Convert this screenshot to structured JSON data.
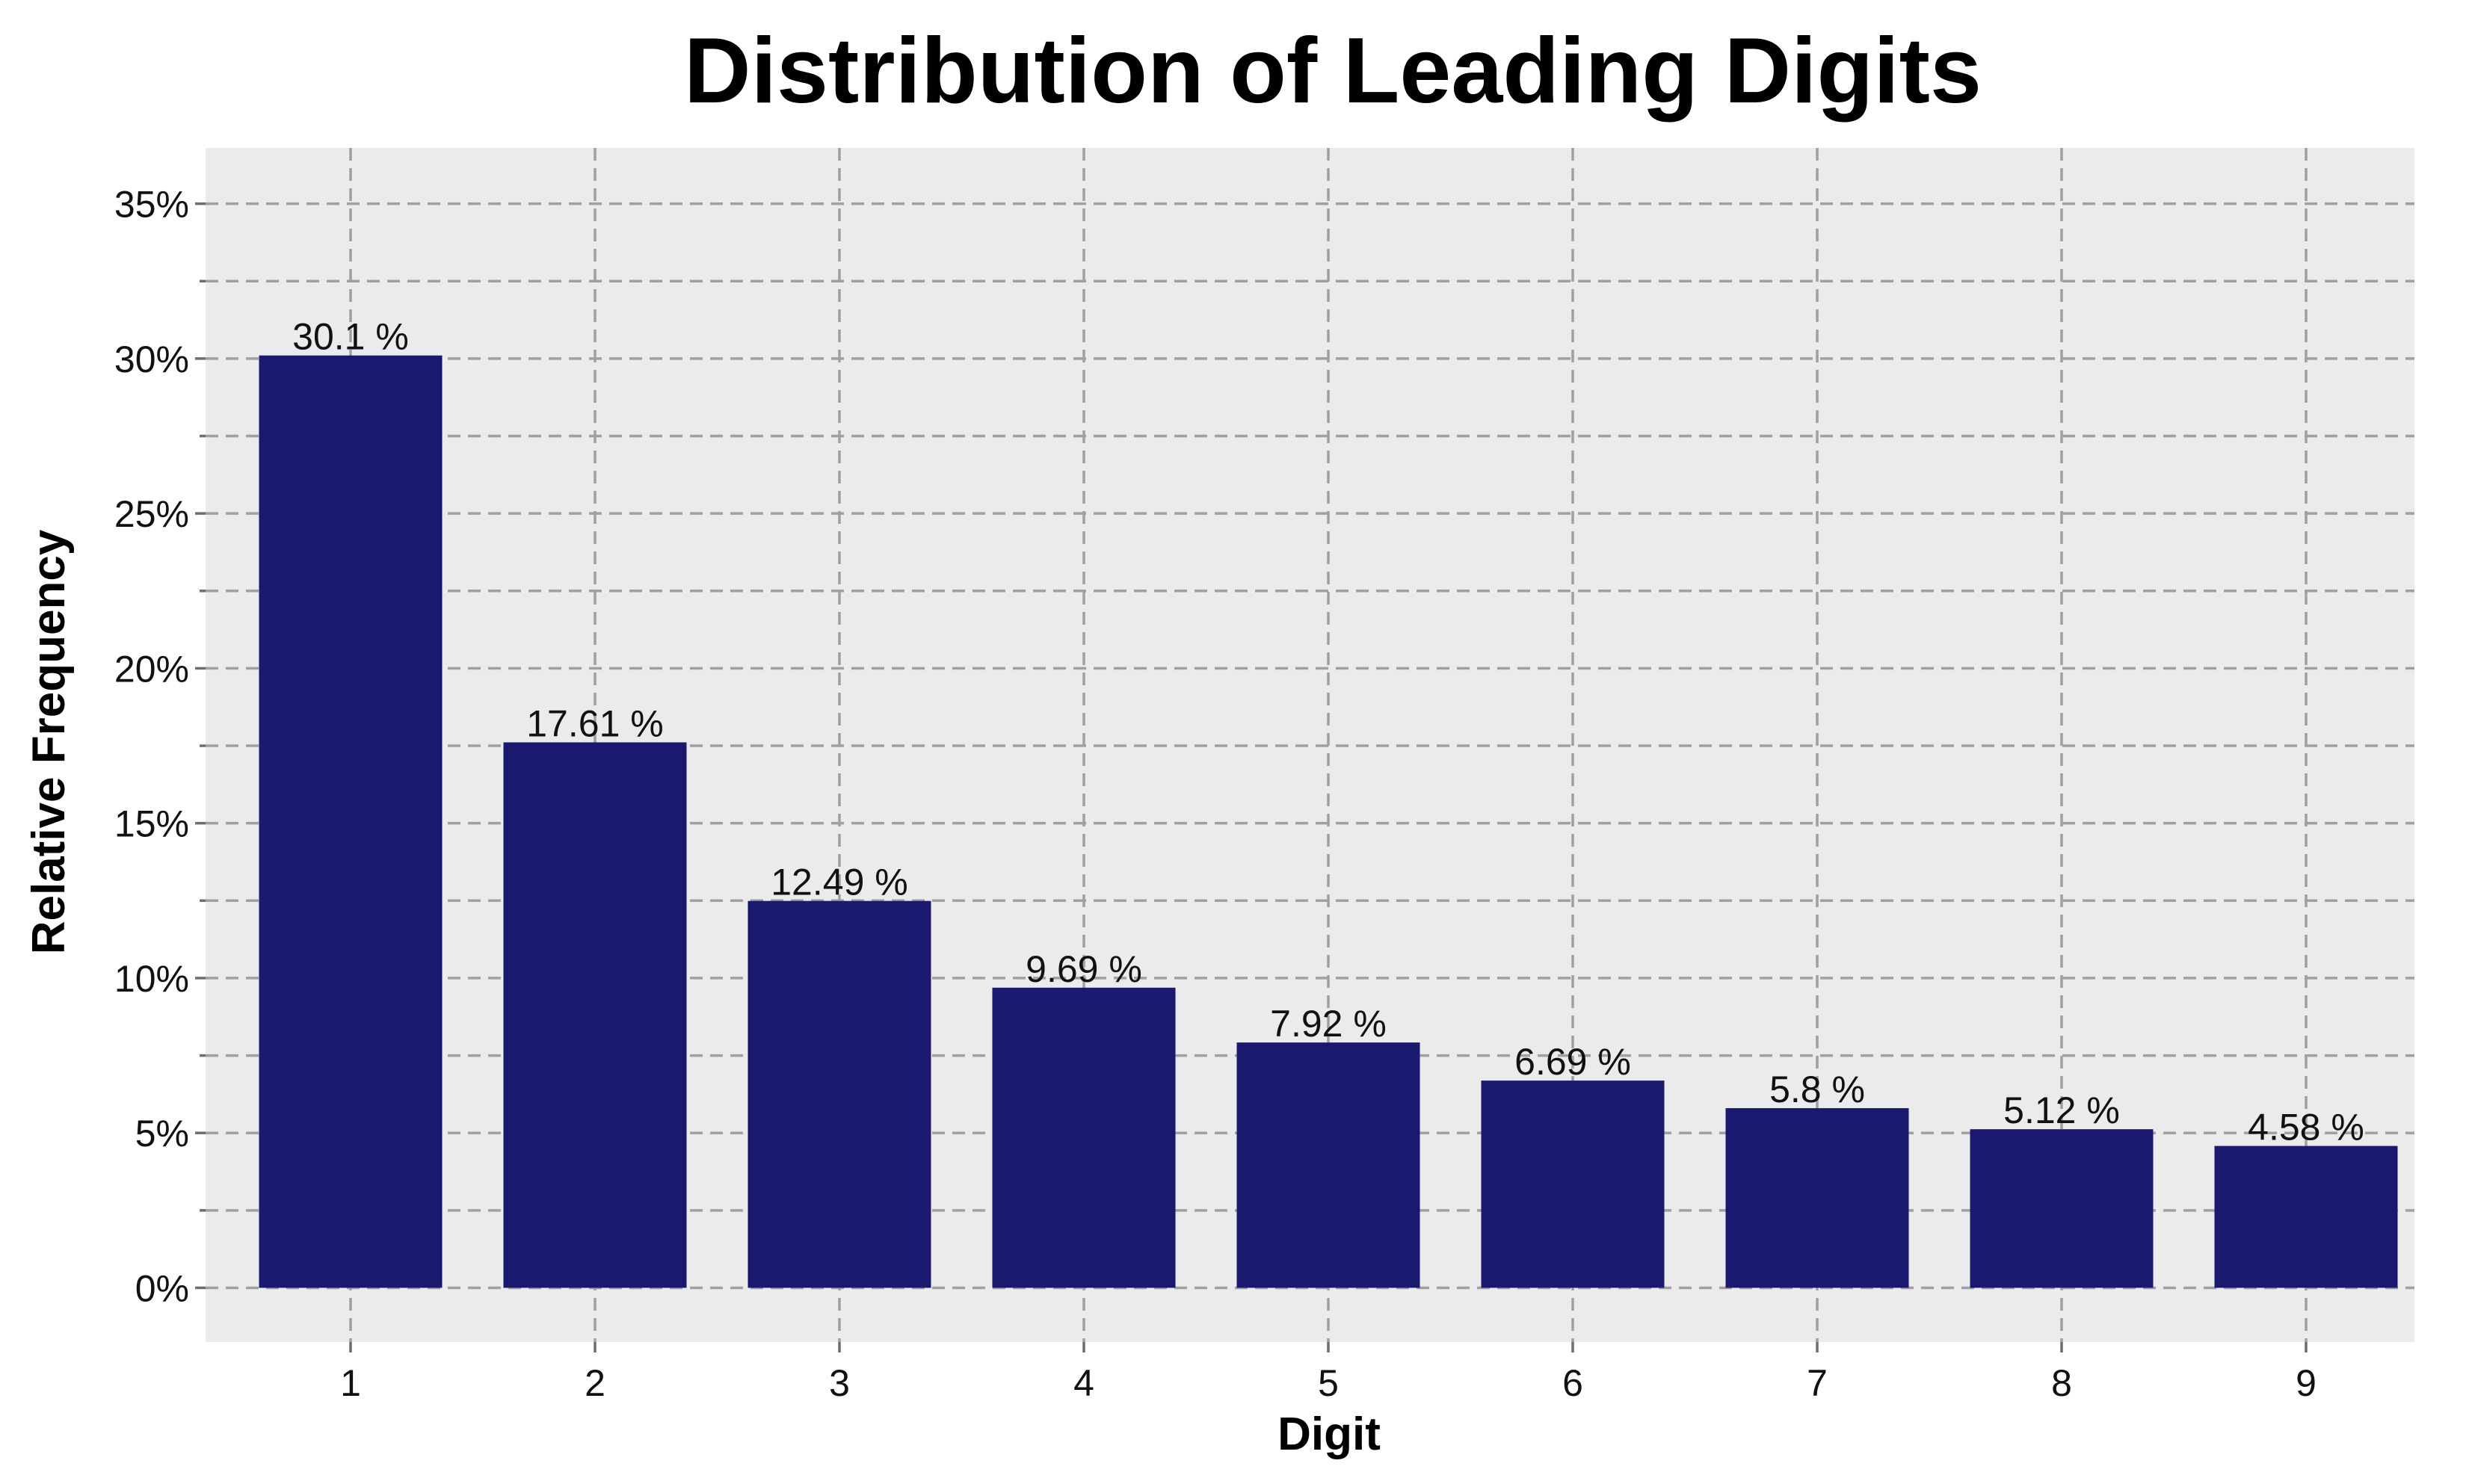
{
  "chart_data": {
    "type": "bar",
    "title": "Distribution of Leading Digits",
    "xlabel": "Digit",
    "ylabel": "Relative Frequency",
    "categories": [
      "1",
      "2",
      "3",
      "4",
      "5",
      "6",
      "7",
      "8",
      "9"
    ],
    "values": [
      30.1,
      17.61,
      12.49,
      9.69,
      7.92,
      6.69,
      5.8,
      5.12,
      4.58
    ],
    "data_labels": [
      "30.1 %",
      "17.61 %",
      "12.49 %",
      "9.69 %",
      "7.92 %",
      "6.69 %",
      "5.8 %",
      "5.12 %",
      "4.58 %"
    ],
    "yticks": [
      0,
      5,
      10,
      15,
      20,
      25,
      30,
      35
    ],
    "ytick_labels": [
      "0%",
      "5%",
      "10%",
      "15%",
      "20%",
      "25%",
      "30%",
      "35%"
    ],
    "ylim": [
      -1.75,
      36.8
    ],
    "grid": true,
    "colors": {
      "bar": "#191970",
      "plot_background": "#ebebeb"
    }
  }
}
